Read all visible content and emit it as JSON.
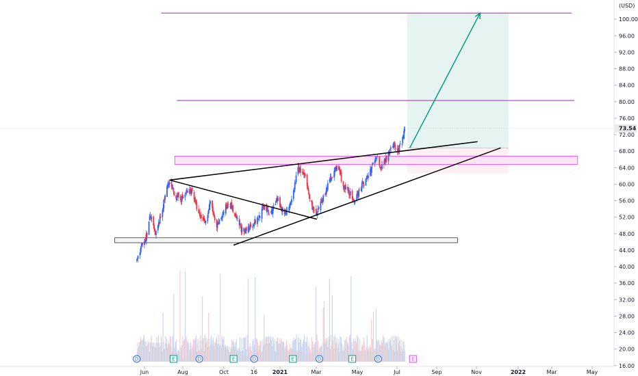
{
  "chart_data": {
    "type": "candlestick",
    "currency_label": "(USD)",
    "last_price": "73.54",
    "y_ticks": [
      "100.00",
      "96.00",
      "92.00",
      "88.00",
      "84.00",
      "80.00",
      "76.00",
      "72.00",
      "68.00",
      "64.00",
      "60.00",
      "56.00",
      "52.00",
      "48.00",
      "44.00",
      "40.00",
      "36.00",
      "32.00",
      "28.00",
      "24.00",
      "20.00",
      "16.00"
    ],
    "y_tick_values": [
      100,
      96,
      92,
      88,
      84,
      80,
      76,
      72,
      68,
      64,
      60,
      56,
      52,
      48,
      44,
      40,
      36,
      32,
      28,
      24,
      20,
      16
    ],
    "x_ticks": [
      "Jun",
      "Aug",
      "Oct",
      "16",
      "2021",
      "Mar",
      "May",
      "Jul",
      "Sep",
      "Nov",
      "2022",
      "Mar",
      "May"
    ],
    "x_tick_bold": [
      false,
      false,
      false,
      false,
      true,
      false,
      false,
      false,
      false,
      false,
      true,
      false,
      false
    ],
    "price_anchor_points": [
      [
        "2020-05-20",
        41.8
      ],
      [
        "2020-05-28",
        45
      ],
      [
        "2020-06-05",
        48
      ],
      [
        "2020-06-10",
        52.5
      ],
      [
        "2020-06-18",
        47.5
      ],
      [
        "2020-06-26",
        52
      ],
      [
        "2020-07-08",
        60.5
      ],
      [
        "2020-07-20",
        57
      ],
      [
        "2020-07-29",
        56.5
      ],
      [
        "2020-08-05",
        58
      ],
      [
        "2020-08-14",
        58.5
      ],
      [
        "2020-08-24",
        52.5
      ],
      [
        "2020-09-04",
        51
      ],
      [
        "2020-09-12",
        56
      ],
      [
        "2020-09-20",
        49
      ],
      [
        "2020-09-28",
        52
      ],
      [
        "2020-10-10",
        56
      ],
      [
        "2020-10-20",
        52
      ],
      [
        "2020-11-02",
        48
      ],
      [
        "2020-11-12",
        50
      ],
      [
        "2020-11-24",
        51.5
      ],
      [
        "2020-12-04",
        55
      ],
      [
        "2020-12-12",
        52.5
      ],
      [
        "2020-12-24",
        56
      ],
      [
        "2021-01-04",
        53
      ],
      [
        "2021-01-14",
        55
      ],
      [
        "2021-01-25",
        64
      ],
      [
        "2021-02-04",
        62
      ],
      [
        "2021-02-14",
        55.5
      ],
      [
        "2021-02-22",
        52
      ],
      [
        "2021-03-03",
        56
      ],
      [
        "2021-03-18",
        62
      ],
      [
        "2021-03-28",
        64.5
      ],
      [
        "2021-04-06",
        59
      ],
      [
        "2021-04-15",
        58
      ],
      [
        "2021-04-22",
        55
      ],
      [
        "2021-04-30",
        59
      ],
      [
        "2021-05-10",
        61
      ],
      [
        "2021-05-17",
        63
      ],
      [
        "2021-05-26",
        67
      ],
      [
        "2021-06-03",
        64
      ],
      [
        "2021-06-12",
        67
      ],
      [
        "2021-06-20",
        70
      ],
      [
        "2021-06-28",
        68
      ],
      [
        "2021-07-05",
        70
      ],
      [
        "2021-07-09",
        73.5
      ]
    ],
    "volume_bar_count": 300,
    "earnings_markers": [
      "D",
      "E",
      "D",
      "E",
      "D",
      "E",
      "D",
      "E",
      "D",
      "E"
    ],
    "earnings_marker_dates": [
      "2020-05-20",
      "2020-07-16",
      "2020-08-25",
      "2020-10-17",
      "2020-11-18",
      "2021-01-17",
      "2021-02-27",
      "2021-04-19",
      "2021-05-29",
      "2021-07-22"
    ],
    "annotations": {
      "horizontal_lines": [
        {
          "price": 101.5,
          "start": "2020-06-27",
          "end": "2022-03-25",
          "color": "#9c27b0"
        },
        {
          "price": 80.3,
          "start": "2020-07-21",
          "end": "2022-03-29",
          "color": "#9c27b0"
        }
      ],
      "zones": [
        {
          "price_top": 66.8,
          "price_bottom": 64.8,
          "start": "2020-07-18",
          "end": "2022-04-03",
          "fill": "#fce4f6",
          "stroke": "#e040fb"
        },
        {
          "price_top": 47,
          "price_bottom": 45.8,
          "start": "2020-04-16",
          "end": "2021-09-29",
          "fill": "#f5f5f5",
          "stroke": "#333333"
        }
      ],
      "trend_lines": [
        {
          "from": [
            "2020-07-10",
            61
          ],
          "to": [
            "2021-10-30",
            70.3
          ]
        },
        {
          "from": [
            "2020-07-10",
            61
          ],
          "to": [
            "2021-02-23",
            51.5
          ]
        },
        {
          "from": [
            "2020-10-17",
            45.2
          ],
          "to": [
            "2021-12-05",
            68.8
          ]
        }
      ],
      "target_arrow": {
        "from": [
          "2021-07-17",
          68.8
        ],
        "to": [
          "2021-11-03",
          101.5
        ],
        "color": "#089981"
      },
      "target_zone": {
        "price_top": 101.5,
        "price_entry": 68.8,
        "price_bottom": 62.6,
        "start": "2021-07-13",
        "end": "2021-12-17",
        "profit_fill": "#e6f4f1",
        "loss_fill": "#fde9ec"
      }
    },
    "colors": {
      "up": "#2962ff",
      "down": "#f23645",
      "vol_up": "#aec2ef",
      "vol_down": "#f4b3b8",
      "axis": "#e0e3eb",
      "grid": "#f0f3fa",
      "marker_d": "#2962ff",
      "marker_e": "#089981",
      "marker_e_future": "#e040fb",
      "arrow": "#089981",
      "price_line": "#cfcfd6"
    }
  }
}
